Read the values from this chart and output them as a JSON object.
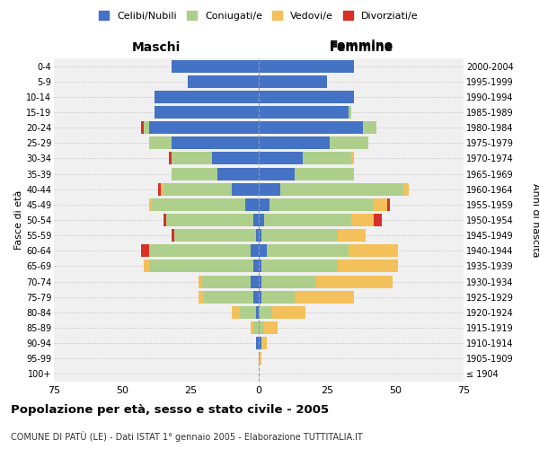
{
  "age_groups": [
    "100+",
    "95-99",
    "90-94",
    "85-89",
    "80-84",
    "75-79",
    "70-74",
    "65-69",
    "60-64",
    "55-59",
    "50-54",
    "45-49",
    "40-44",
    "35-39",
    "30-34",
    "25-29",
    "20-24",
    "15-19",
    "10-14",
    "5-9",
    "0-4"
  ],
  "birth_years": [
    "≤ 1904",
    "1905-1909",
    "1910-1914",
    "1915-1919",
    "1920-1924",
    "1925-1929",
    "1930-1934",
    "1935-1939",
    "1940-1944",
    "1945-1949",
    "1950-1954",
    "1955-1959",
    "1960-1964",
    "1965-1969",
    "1970-1974",
    "1975-1979",
    "1980-1984",
    "1985-1989",
    "1990-1994",
    "1995-1999",
    "2000-2004"
  ],
  "males": {
    "celibi": [
      0,
      0,
      1,
      0,
      1,
      2,
      3,
      2,
      3,
      1,
      2,
      5,
      10,
      15,
      17,
      32,
      40,
      38,
      38,
      26,
      32
    ],
    "coniugati": [
      0,
      0,
      0,
      2,
      6,
      18,
      18,
      38,
      37,
      30,
      32,
      34,
      25,
      17,
      15,
      8,
      2,
      0,
      0,
      0,
      0
    ],
    "vedovi": [
      0,
      0,
      0,
      1,
      3,
      2,
      1,
      2,
      0,
      0,
      0,
      1,
      1,
      0,
      0,
      0,
      0,
      0,
      0,
      0,
      0
    ],
    "divorziati": [
      0,
      0,
      0,
      0,
      0,
      0,
      0,
      0,
      3,
      1,
      1,
      0,
      1,
      0,
      1,
      0,
      1,
      0,
      0,
      0,
      0
    ]
  },
  "females": {
    "nubili": [
      0,
      0,
      1,
      0,
      0,
      1,
      1,
      1,
      3,
      1,
      2,
      4,
      8,
      13,
      16,
      26,
      38,
      33,
      35,
      25,
      35
    ],
    "coniugate": [
      0,
      0,
      0,
      2,
      5,
      12,
      20,
      28,
      30,
      28,
      32,
      38,
      45,
      22,
      18,
      14,
      5,
      1,
      0,
      0,
      0
    ],
    "vedove": [
      0,
      1,
      2,
      5,
      12,
      22,
      28,
      22,
      18,
      10,
      8,
      5,
      2,
      0,
      1,
      0,
      0,
      0,
      0,
      0,
      0
    ],
    "divorziate": [
      0,
      0,
      0,
      0,
      0,
      0,
      0,
      0,
      0,
      0,
      3,
      1,
      0,
      0,
      0,
      0,
      0,
      0,
      0,
      0,
      0
    ]
  },
  "colors": {
    "celibi": "#4472C4",
    "coniugati": "#AECF8B",
    "vedovi": "#F4C05A",
    "divorziati": "#D63028"
  },
  "xlim": 75,
  "title": "Popolazione per età, sesso e stato civile - 2005",
  "subtitle": "COMUNE DI PATÙ (LE) - Dati ISTAT 1° gennaio 2005 - Elaborazione TUTTITALIA.IT",
  "ylabel_left": "Fasce di età",
  "ylabel_right": "Anni di nascita",
  "xlabel_left": "Maschi",
  "xlabel_right": "Femmine",
  "legend_labels": [
    "Celibi/Nubili",
    "Coniugati/e",
    "Vedovi/e",
    "Divorziati/e"
  ],
  "background_color": "#ffffff",
  "plot_bg_color": "#f0f0f0",
  "grid_color": "#cccccc"
}
